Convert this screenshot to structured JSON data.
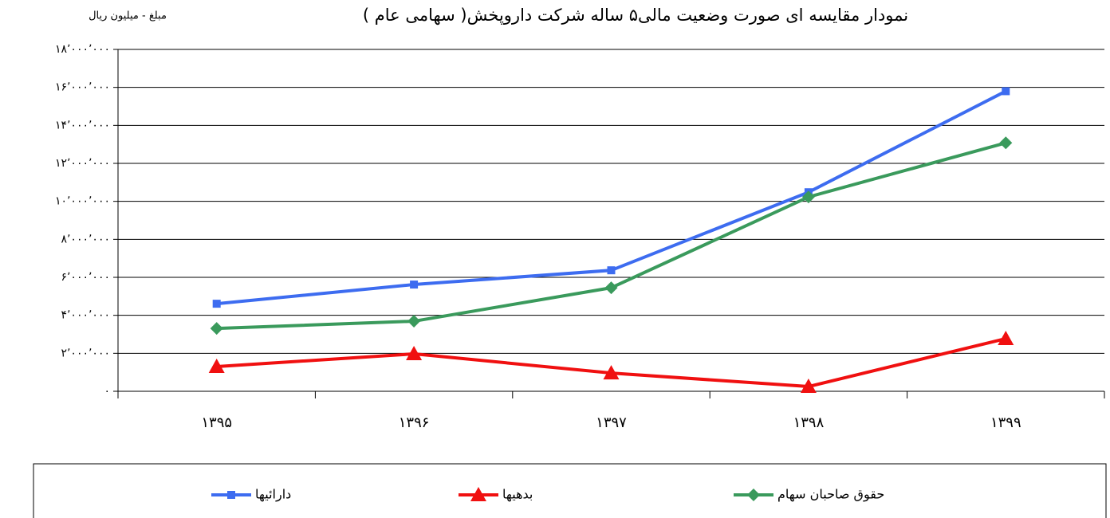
{
  "chart_data": {
    "type": "line",
    "title": "نمودار مقایسه ای صورت وضعیت مالی۵ ساله شرکت داروپخش( سهامی عام )",
    "y_label": "مبلغ - میلیون ریال",
    "categories": [
      "۱۳۹۵",
      "۱۳۹۶",
      "۱۳۹۷",
      "۱۳۹۸",
      "۱۳۹۹"
    ],
    "series": [
      {
        "name": "دارائیها",
        "color": "#3d6cf0",
        "marker": "square",
        "values": [
          4610000,
          5620000,
          6370000,
          10480000,
          15800000
        ]
      },
      {
        "name": "بدهیها",
        "color": "#f01010",
        "marker": "triangle",
        "values": [
          1300000,
          1970000,
          960000,
          250000,
          2770000
        ]
      },
      {
        "name": "حقوق صاحبان سهام",
        "color": "#3a9a5c",
        "marker": "diamond",
        "values": [
          3310000,
          3690000,
          5450000,
          10230000,
          13080000
        ]
      }
    ],
    "ylim": [
      0,
      18000000
    ],
    "yticks": [
      {
        "value": 0,
        "label": "۰"
      },
      {
        "value": 2000000,
        "label": "۲٬۰۰۰٬۰۰۰"
      },
      {
        "value": 4000000,
        "label": "۴٬۰۰۰٬۰۰۰"
      },
      {
        "value": 6000000,
        "label": "۶٬۰۰۰٬۰۰۰"
      },
      {
        "value": 8000000,
        "label": "۸٬۰۰۰٬۰۰۰"
      },
      {
        "value": 10000000,
        "label": "۱۰٬۰۰۰٬۰۰۰"
      },
      {
        "value": 12000000,
        "label": "۱۲٬۰۰۰٬۰۰۰"
      },
      {
        "value": 14000000,
        "label": "۱۴٬۰۰۰٬۰۰۰"
      },
      {
        "value": 16000000,
        "label": "۱۶٬۰۰۰٬۰۰۰"
      },
      {
        "value": 18000000,
        "label": "۱۸٬۰۰۰٬۰۰۰"
      }
    ],
    "grid": true,
    "legend": "bottom"
  }
}
